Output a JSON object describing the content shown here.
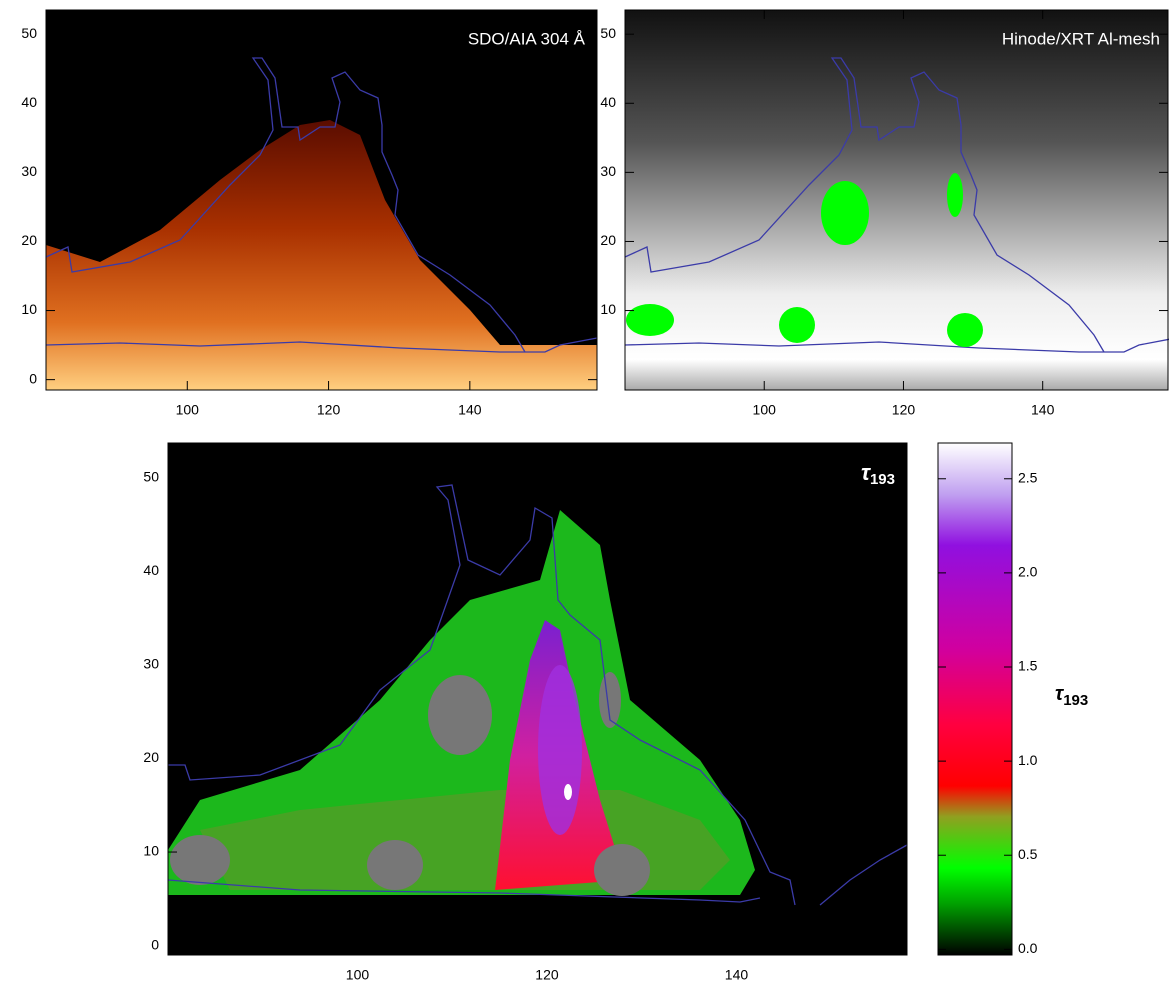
{
  "chart_data": [
    {
      "type": "image",
      "title": "SDO/AIA 304 Å",
      "xlim": [
        80,
        158
      ],
      "ylim": [
        -1.5,
        53.5
      ],
      "xticks": [
        100,
        120,
        140
      ],
      "yticks": [
        0,
        10,
        20,
        30,
        40,
        50
      ]
    },
    {
      "type": "image",
      "title": "Hinode/XRT Al-mesh",
      "xlim": [
        80,
        158
      ],
      "ylim": [
        -1.5,
        53.5
      ],
      "xticks": [
        100,
        120,
        140
      ],
      "yticks": [
        10,
        20,
        30,
        40,
        50
      ]
    },
    {
      "type": "image",
      "title": {
        "symbol": "τ",
        "subscript": "193"
      },
      "xlim": [
        80,
        158
      ],
      "ylim": [
        -1,
        53.7
      ],
      "xticks": [
        100,
        120,
        140
      ],
      "yticks": [
        0,
        10,
        20,
        30,
        40,
        50
      ]
    },
    {
      "type": "colorbar",
      "label": {
        "symbol": "τ",
        "subscript": "193"
      },
      "ylim": [
        -0.03,
        2.69
      ],
      "yticks": [
        {
          "value": 0,
          "label": "0.0"
        },
        {
          "value": 0.5,
          "label": "0.5"
        },
        {
          "value": 1,
          "label": "1.0"
        },
        {
          "value": 1.5,
          "label": "1.5"
        },
        {
          "value": 2,
          "label": "2.0"
        },
        {
          "value": 2.5,
          "label": "2.5"
        }
      ]
    }
  ]
}
